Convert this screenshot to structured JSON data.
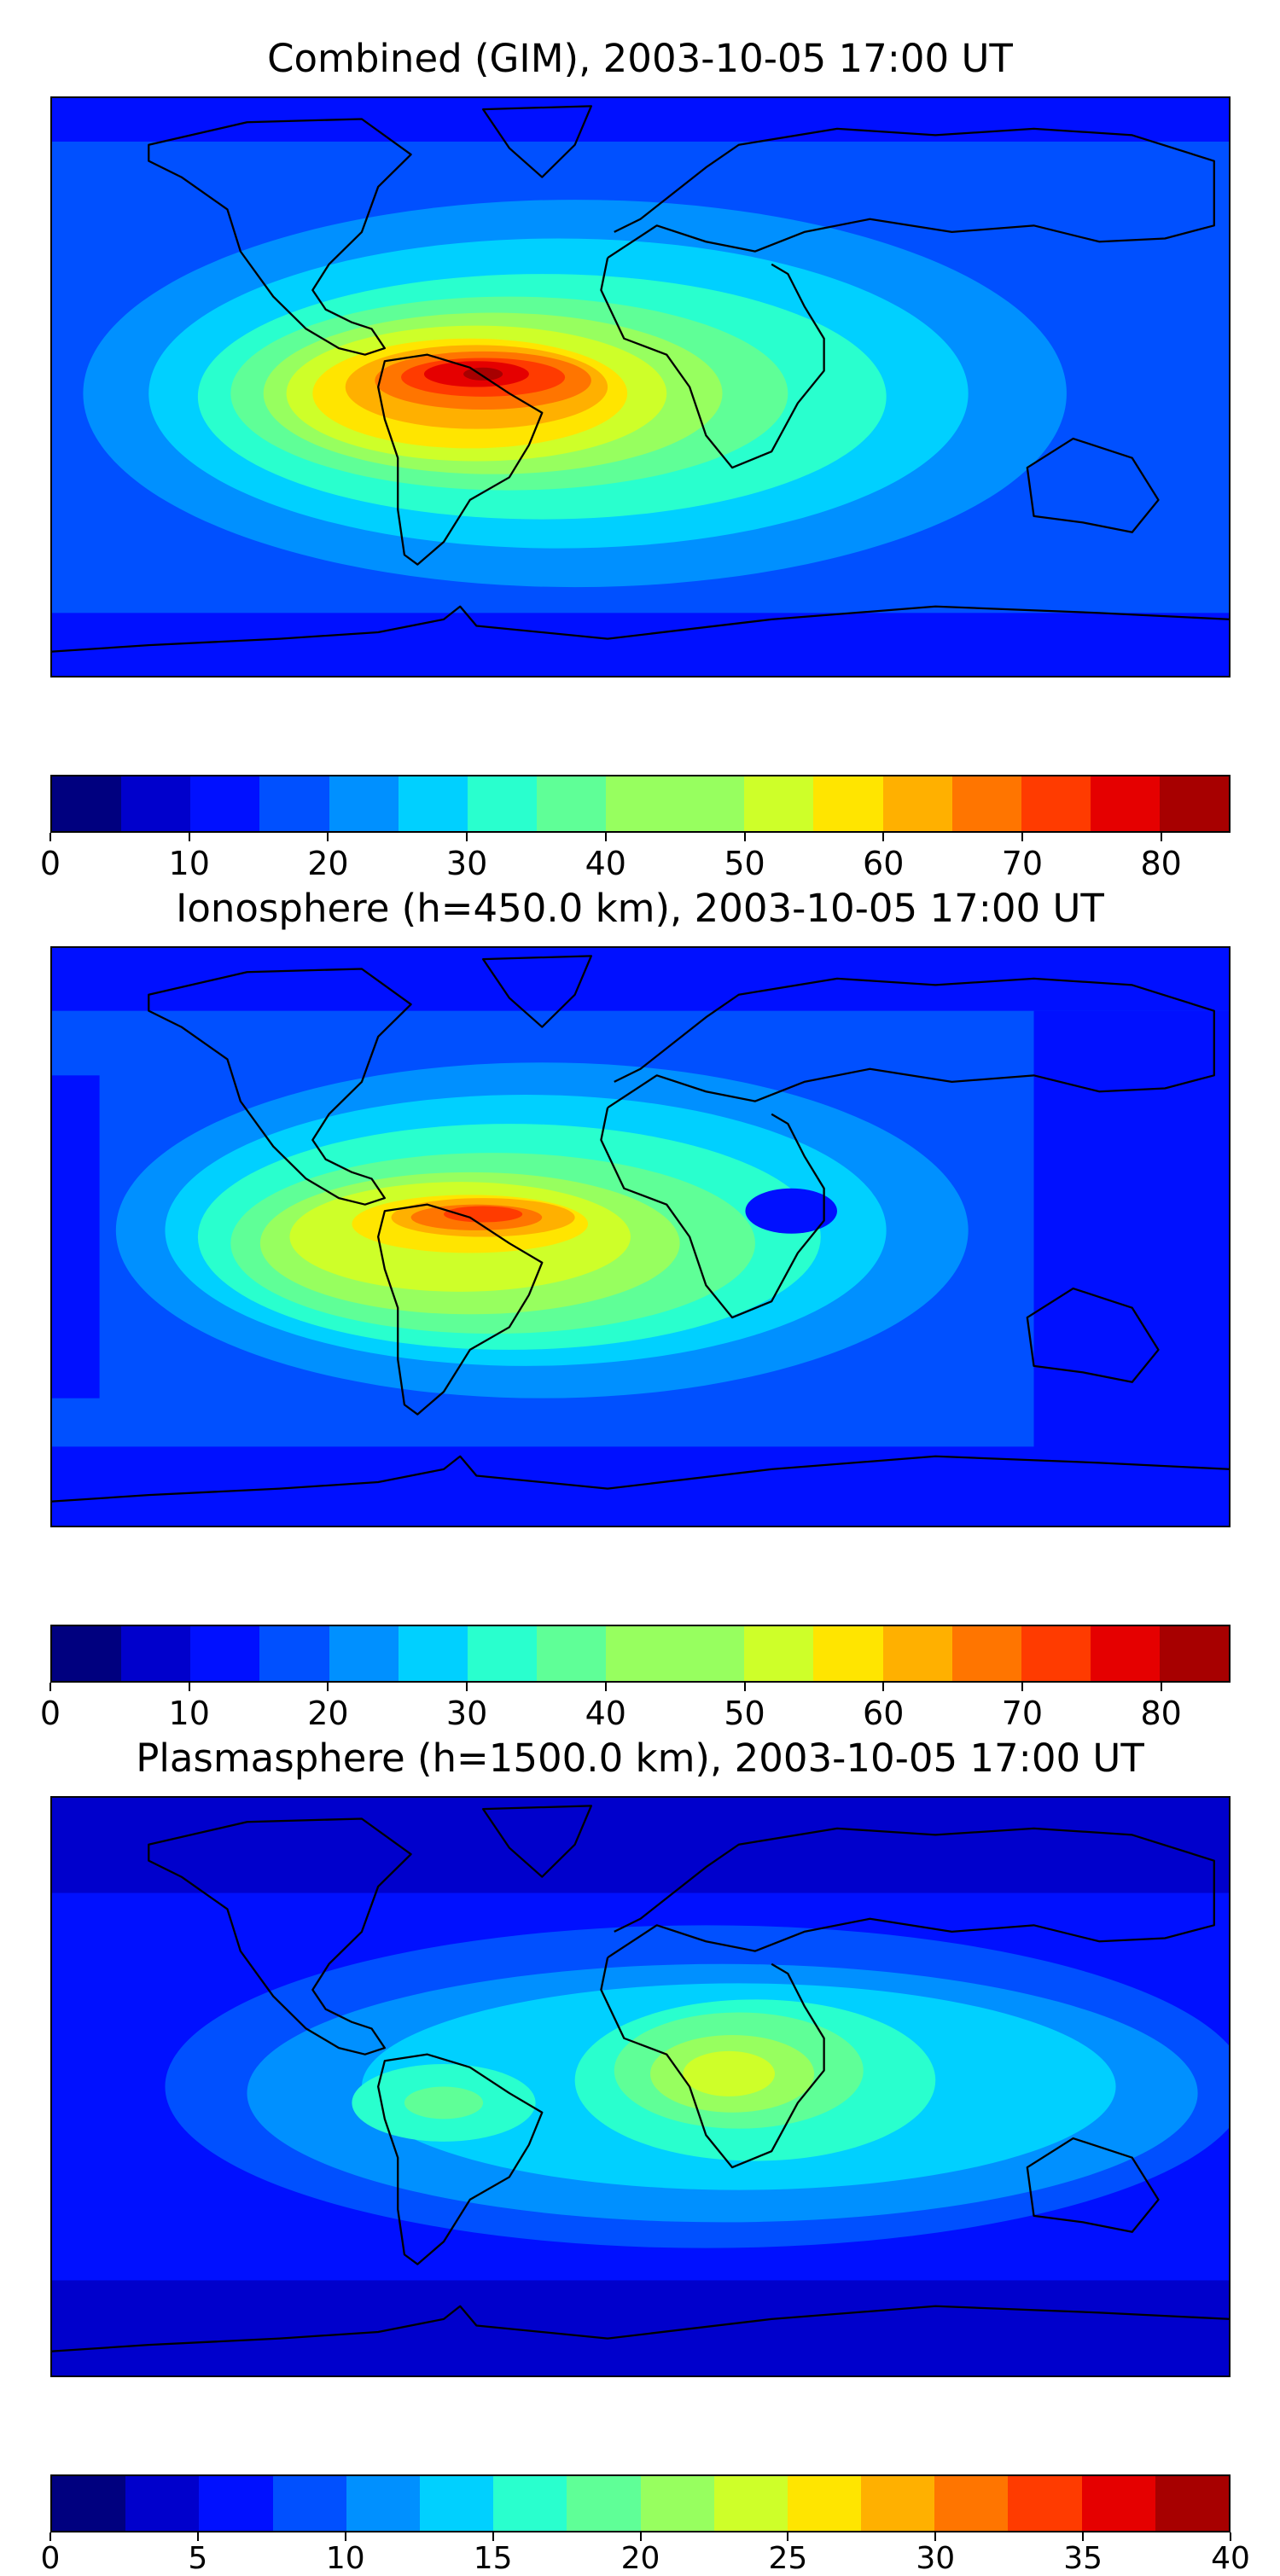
{
  "colors": [
    "#00007f",
    "#0000cc",
    "#0010ff",
    "#0050ff",
    "#0090ff",
    "#00d0ff",
    "#29ffce",
    "#5fff97",
    "#97ff5f",
    "#ceff29",
    "#ffe500",
    "#ffb000",
    "#ff7500",
    "#ff3b00",
    "#e50000",
    "#a70000"
  ],
  "panels": [
    {
      "title": "Combined (GIM), 2003-10-05 17:00 UT",
      "colorbar": {
        "min": 0,
        "max": 85,
        "step": 5,
        "ticks": [
          "0",
          "10",
          "20",
          "30",
          "40",
          "50",
          "60",
          "70",
          "80"
        ],
        "tick_values": [
          0,
          10,
          20,
          30,
          40,
          50,
          60,
          70,
          80
        ]
      },
      "max_region": "South America"
    },
    {
      "title": "Ionosphere  (h=450.0 km), 2003-10-05 17:00 UT",
      "colorbar": {
        "min": 0,
        "max": 85,
        "step": 5,
        "ticks": [
          "0",
          "10",
          "20",
          "30",
          "40",
          "50",
          "60",
          "70",
          "80"
        ],
        "tick_values": [
          0,
          10,
          20,
          30,
          40,
          50,
          60,
          70,
          80
        ]
      },
      "max_region": "northern South America"
    },
    {
      "title": "Plasmasphere (h=1500.0 km), 2003-10-05 17:00 UT",
      "colorbar": {
        "min": 0,
        "max": 40,
        "step": 2.5,
        "ticks": [
          "0",
          "5",
          "10",
          "15",
          "20",
          "25",
          "30",
          "35",
          "40"
        ],
        "tick_values": [
          0,
          5,
          10,
          15,
          20,
          25,
          30,
          35,
          40
        ]
      },
      "max_region": "Central Africa"
    }
  ]
}
